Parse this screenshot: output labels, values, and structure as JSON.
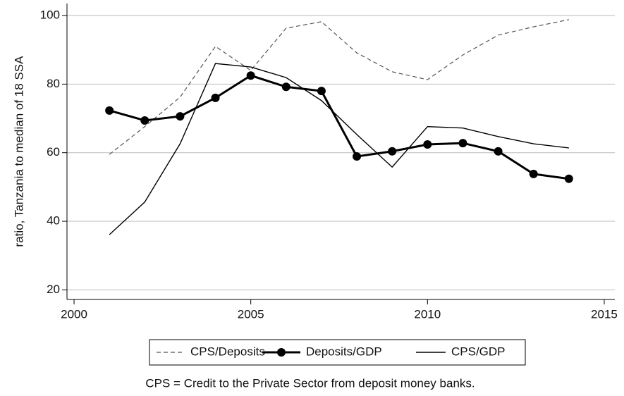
{
  "chart_data": {
    "type": "line",
    "y_label": "ratio, Tanzania to median of 18 SSA",
    "note": "CPS = Credit to the Private Sector from deposit money banks.",
    "x": [
      2001,
      2002,
      2003,
      2004,
      2005,
      2006,
      2007,
      2008,
      2009,
      2010,
      2011,
      2012,
      2013,
      2014
    ],
    "series": [
      {
        "name": "CPS/Deposits",
        "color": "#555555",
        "style": "dashed",
        "marker": false,
        "values": [
          59.5,
          67.6,
          76.2,
          91,
          84,
          96.3,
          98.2,
          89.1,
          83.6,
          81.3,
          88.5,
          94.3,
          96.7,
          98.8
        ]
      },
      {
        "name": "Deposits/GDP",
        "color": "#000000",
        "style": "bold",
        "marker": true,
        "values": [
          72.3,
          69.4,
          70.6,
          76,
          82.5,
          79.2,
          78,
          58.9,
          60.4,
          62.4,
          62.8,
          60.4,
          53.8,
          52.4
        ]
      },
      {
        "name": "CPS/GDP",
        "color": "#000000",
        "style": "solid",
        "marker": false,
        "values": [
          36.1,
          45.6,
          62.6,
          86,
          85,
          81.9,
          75.2,
          65.3,
          55.8,
          67.6,
          67.2,
          64.7,
          62.6,
          61.4
        ]
      }
    ],
    "xlim": [
      1999.8,
      2015.3
    ],
    "ylim": [
      17.2,
      103.5
    ],
    "xticks": [
      2000,
      2005,
      2010,
      2015
    ],
    "yticks": [
      20,
      40,
      60,
      80,
      100
    ],
    "grid": true,
    "legend": "bottom"
  }
}
